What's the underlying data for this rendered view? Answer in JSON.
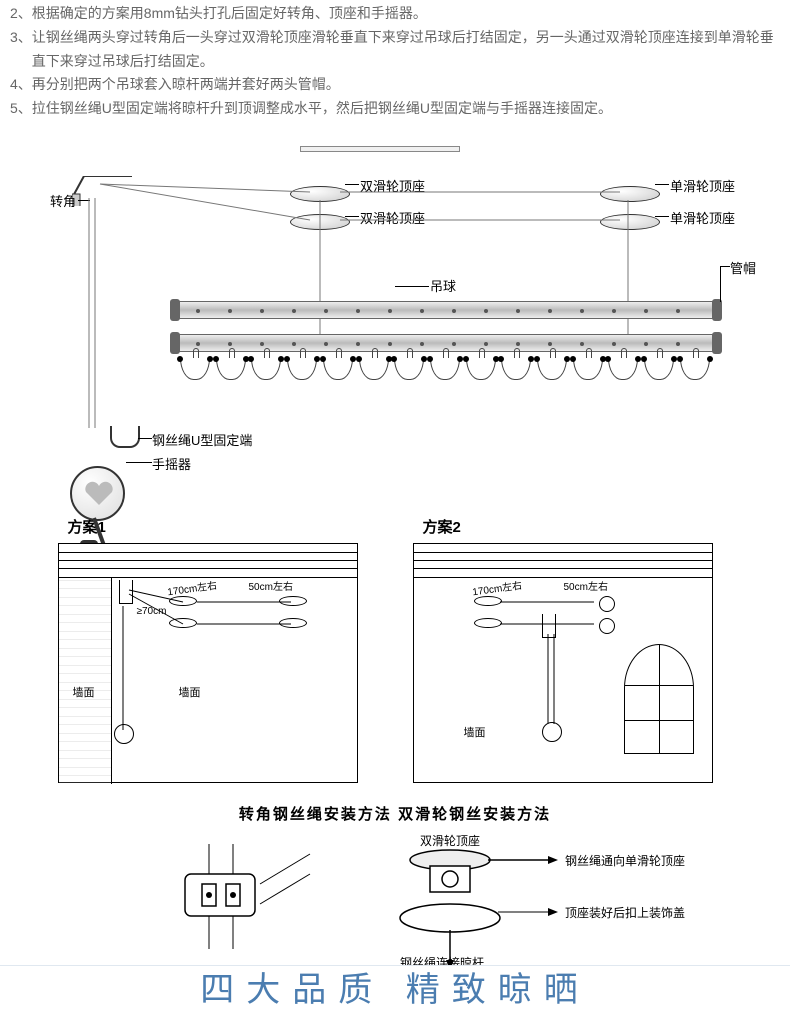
{
  "instructions": [
    {
      "num": "2、",
      "text": "根据确定的方案用8mm钻头打孔后固定好转角、顶座和手摇器。"
    },
    {
      "num": "3、",
      "text": "让钢丝绳两头穿过转角后一头穿过双滑轮顶座滑轮垂直下来穿过吊球后打结固定，另一头通过双滑轮顶座连接到单滑轮垂直下来穿过吊球后打结固定。"
    },
    {
      "num": "4、",
      "text": "再分别把两个吊球套入晾杆两端并套好两头管帽。"
    },
    {
      "num": "5、",
      "text": "拉住钢丝绳U型固定端将晾杆升到顶调整成水平，然后把钢丝绳U型固定端与手摇器连接固定。"
    }
  ],
  "main_diagram_labels": {
    "corner": "转角",
    "double_pulley": "双滑轮顶座",
    "single_pulley": "单滑轮顶座",
    "cap": "管帽",
    "ball": "吊球",
    "u_clamp": "钢丝绳U型固定端",
    "winder": "手摇器"
  },
  "schemes": {
    "s1": "方案1",
    "s2": "方案2",
    "wall": "墙面",
    "dim_170": "170cm左右",
    "dim_50": "50cm左右",
    "dim_70": "≥70cm"
  },
  "methods": {
    "title": "转角钢丝绳安装方法   双滑轮钢丝安装方法",
    "double_pulley": "双滑轮顶座",
    "wire_to_single": "钢丝绳通向单滑轮顶座",
    "cover": "顶座装好后扣上装饰盖",
    "connect_rod": "钢丝绳连接晾杆"
  },
  "banner": "四大品质 精致晾晒",
  "colors": {
    "text": "#666666",
    "banner_text": "#4b7db0"
  }
}
